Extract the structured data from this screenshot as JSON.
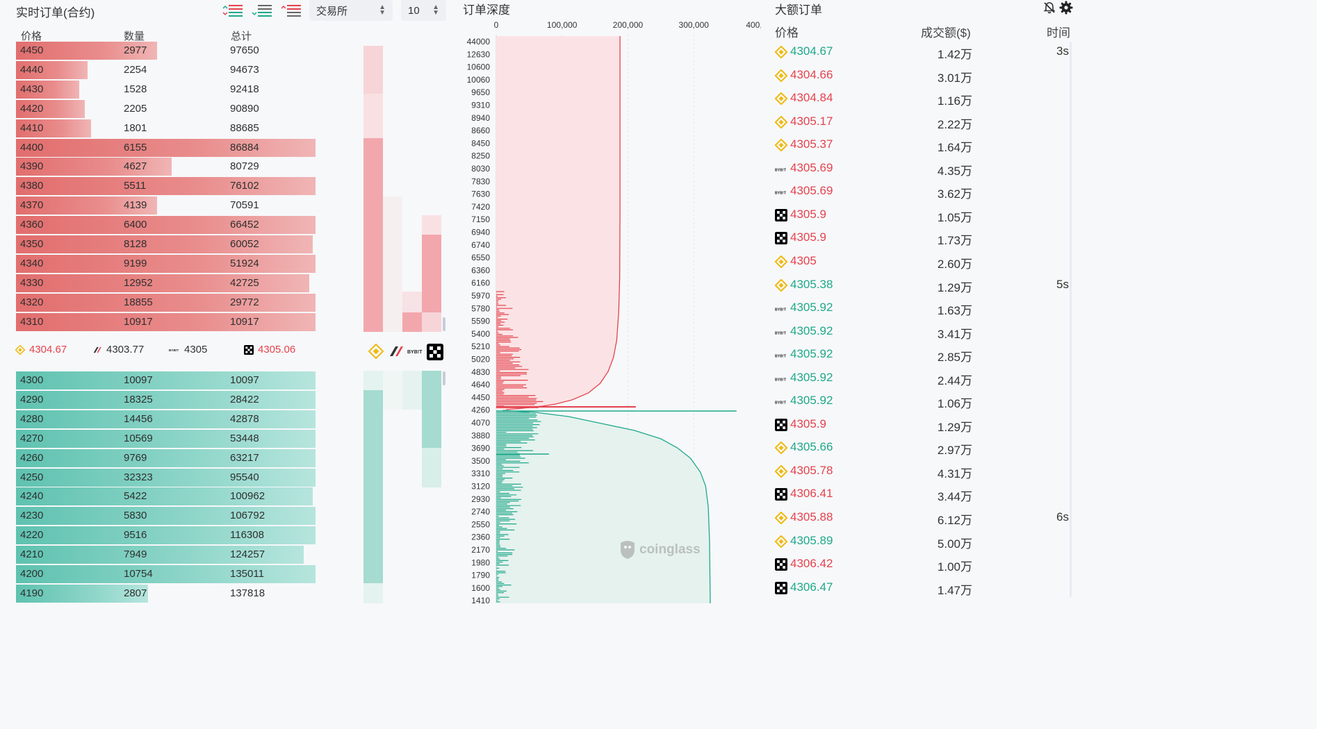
{
  "orderbook": {
    "title": "实时订单(合约)",
    "exchange_select": "交易所",
    "depth_select": "10",
    "headers": {
      "price": "价格",
      "qty": "数量",
      "total": "总计"
    },
    "asks": [
      {
        "price": "4450",
        "qty": "2977",
        "total": "97650",
        "fill": 0.47
      },
      {
        "price": "4440",
        "qty": "2254",
        "total": "94673",
        "fill": 0.24
      },
      {
        "price": "4430",
        "qty": "1528",
        "total": "92418",
        "fill": 0.21
      },
      {
        "price": "4420",
        "qty": "2205",
        "total": "90890",
        "fill": 0.23
      },
      {
        "price": "4410",
        "qty": "1801",
        "total": "88685",
        "fill": 0.25
      },
      {
        "price": "4400",
        "qty": "6155",
        "total": "86884",
        "fill": 1.0
      },
      {
        "price": "4390",
        "qty": "4627",
        "total": "80729",
        "fill": 0.52
      },
      {
        "price": "4380",
        "qty": "5511",
        "total": "76102",
        "fill": 1.0
      },
      {
        "price": "4370",
        "qty": "4139",
        "total": "70591",
        "fill": 0.47
      },
      {
        "price": "4360",
        "qty": "6400",
        "total": "66452",
        "fill": 1.0
      },
      {
        "price": "4350",
        "qty": "8128",
        "total": "60052",
        "fill": 0.99
      },
      {
        "price": "4340",
        "qty": "9199",
        "total": "51924",
        "fill": 1.0
      },
      {
        "price": "4330",
        "qty": "12952",
        "total": "42725",
        "fill": 0.98
      },
      {
        "price": "4320",
        "qty": "18855",
        "total": "29772",
        "fill": 1.0
      },
      {
        "price": "4310",
        "qty": "10917",
        "total": "10917",
        "fill": 1.0
      }
    ],
    "bids": [
      {
        "price": "4300",
        "qty": "10097",
        "total": "10097",
        "fill": 1.0
      },
      {
        "price": "4290",
        "qty": "18325",
        "total": "28422",
        "fill": 1.0
      },
      {
        "price": "4280",
        "qty": "14456",
        "total": "42878",
        "fill": 1.0
      },
      {
        "price": "4270",
        "qty": "10569",
        "total": "53448",
        "fill": 1.0
      },
      {
        "price": "4260",
        "qty": "9769",
        "total": "63217",
        "fill": 1.0
      },
      {
        "price": "4250",
        "qty": "32323",
        "total": "95540",
        "fill": 1.0
      },
      {
        "price": "4240",
        "qty": "5422",
        "total": "100962",
        "fill": 0.99
      },
      {
        "price": "4230",
        "qty": "5830",
        "total": "106792",
        "fill": 1.0
      },
      {
        "price": "4220",
        "qty": "9516",
        "total": "116308",
        "fill": 1.0
      },
      {
        "price": "4210",
        "qty": "7949",
        "total": "124257",
        "fill": 0.96
      },
      {
        "price": "4200",
        "qty": "10754",
        "total": "135011",
        "fill": 1.0
      },
      {
        "price": "4190",
        "qty": "2807",
        "total": "137818",
        "fill": 0.44
      }
    ],
    "tickers": [
      {
        "exchange": "binance",
        "price": "4304.67",
        "color": "#e5424d"
      },
      {
        "exchange": "other",
        "price": "4303.77",
        "color": "#333333"
      },
      {
        "exchange": "bybit",
        "price": "4305",
        "color": "#333333"
      },
      {
        "exchange": "okx",
        "price": "4305.06",
        "color": "#e5424d"
      }
    ],
    "colors": {
      "ask": "#e26e6e",
      "bid": "#5fc2b0"
    }
  },
  "depth": {
    "title": "订单深度",
    "watermark": "coinglass",
    "x_ticks": [
      "0",
      "100,000",
      "200,000",
      "300,000",
      "400,"
    ],
    "y_ticks": [
      "44000",
      "12630",
      "10600",
      "10060",
      "9650",
      "9310",
      "8940",
      "8660",
      "8450",
      "8250",
      "8030",
      "7830",
      "7630",
      "7420",
      "7150",
      "6940",
      "6740",
      "6550",
      "6360",
      "6160",
      "5970",
      "5780",
      "5590",
      "5400",
      "5210",
      "5020",
      "4830",
      "4640",
      "4450",
      "4260",
      "4070",
      "3880",
      "3690",
      "3500",
      "3310",
      "3120",
      "2930",
      "2740",
      "2550",
      "2360",
      "2170",
      "1980",
      "1790",
      "1600",
      "1410"
    ]
  },
  "big_orders": {
    "title": "大额订单",
    "headers": {
      "price": "价格",
      "amount": "成交额($)",
      "time": "时间"
    },
    "rows": [
      {
        "exchange": "binance-icon",
        "price": "4304.67",
        "dir": "up",
        "amount": "1.42万",
        "time": "3s"
      },
      {
        "exchange": "binance-icon",
        "price": "4304.66",
        "dir": "down",
        "amount": "3.01万",
        "time": ""
      },
      {
        "exchange": "binance-icon",
        "price": "4304.84",
        "dir": "down",
        "amount": "1.16万",
        "time": ""
      },
      {
        "exchange": "binance-icon",
        "price": "4305.17",
        "dir": "down",
        "amount": "2.22万",
        "time": ""
      },
      {
        "exchange": "binance-icon",
        "price": "4305.37",
        "dir": "down",
        "amount": "1.64万",
        "time": ""
      },
      {
        "exchange": "bybit-icon",
        "price": "4305.69",
        "dir": "down",
        "amount": "4.35万",
        "time": ""
      },
      {
        "exchange": "bybit-icon",
        "price": "4305.69",
        "dir": "down",
        "amount": "3.62万",
        "time": ""
      },
      {
        "exchange": "okx-icon",
        "price": "4305.9",
        "dir": "down",
        "amount": "1.05万",
        "time": ""
      },
      {
        "exchange": "okx-icon",
        "price": "4305.9",
        "dir": "down",
        "amount": "1.73万",
        "time": ""
      },
      {
        "exchange": "binance-icon",
        "price": "4305",
        "dir": "down",
        "amount": "2.60万",
        "time": ""
      },
      {
        "exchange": "binance-icon",
        "price": "4305.38",
        "dir": "up",
        "amount": "1.29万",
        "time": "5s"
      },
      {
        "exchange": "bybit-icon",
        "price": "4305.92",
        "dir": "up",
        "amount": "1.63万",
        "time": ""
      },
      {
        "exchange": "bybit-icon",
        "price": "4305.92",
        "dir": "up",
        "amount": "3.41万",
        "time": ""
      },
      {
        "exchange": "bybit-icon",
        "price": "4305.92",
        "dir": "up",
        "amount": "2.85万",
        "time": ""
      },
      {
        "exchange": "bybit-icon",
        "price": "4305.92",
        "dir": "up",
        "amount": "2.44万",
        "time": ""
      },
      {
        "exchange": "bybit-icon",
        "price": "4305.92",
        "dir": "up",
        "amount": "1.06万",
        "time": ""
      },
      {
        "exchange": "okx-icon",
        "price": "4305.9",
        "dir": "down",
        "amount": "1.29万",
        "time": ""
      },
      {
        "exchange": "binance-icon",
        "price": "4305.66",
        "dir": "up",
        "amount": "2.97万",
        "time": ""
      },
      {
        "exchange": "binance-icon",
        "price": "4305.78",
        "dir": "down",
        "amount": "4.31万",
        "time": ""
      },
      {
        "exchange": "okx-icon",
        "price": "4306.41",
        "dir": "down",
        "amount": "3.44万",
        "time": ""
      },
      {
        "exchange": "binance-icon",
        "price": "4305.88",
        "dir": "down",
        "amount": "6.12万",
        "time": "6s"
      },
      {
        "exchange": "binance-icon",
        "price": "4305.89",
        "dir": "up",
        "amount": "5.00万",
        "time": ""
      },
      {
        "exchange": "okx-icon",
        "price": "4306.42",
        "dir": "down",
        "amount": "1.00万",
        "time": ""
      },
      {
        "exchange": "okx-icon",
        "price": "4306.47",
        "dir": "up",
        "amount": "1.47万",
        "time": ""
      }
    ]
  }
}
